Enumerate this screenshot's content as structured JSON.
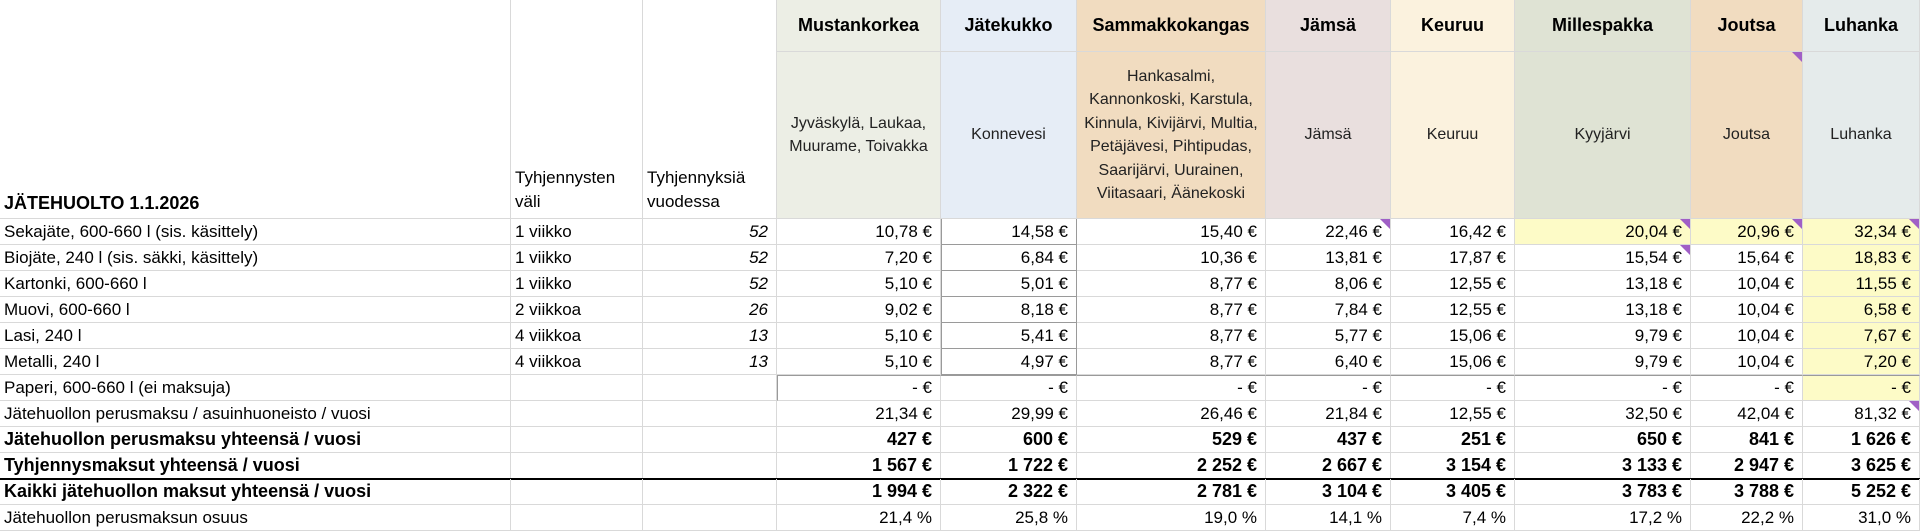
{
  "title": "JÄTEHUOLTO 1.1.2026",
  "col_interval_header": "Tyhjennysten väli",
  "col_count_header": "Tyhjennyksiä vuodessa",
  "providers": [
    {
      "name": "Mustankorkea",
      "municipalities": "Jyväskylä, Laukaa, Muurame, Toivakka",
      "color": "#eceee5"
    },
    {
      "name": "Jätekukko",
      "municipalities": "Konnevesi",
      "color": "#e6edf6"
    },
    {
      "name": "Sammakkokangas",
      "municipalities": "Hankasalmi, Kannonkoski, Karstula, Kinnula, Kivijärvi, Multia, Petäjävesi, Pihtipudas, Saarijärvi, Uurainen, Viitasaari, Äänekoski",
      "color": "#f1dcc0"
    },
    {
      "name": "Jämsä",
      "municipalities": "Jämsä",
      "color": "#e9dfde"
    },
    {
      "name": "Keuruu",
      "municipalities": "Keuruu",
      "color": "#fbf2de"
    },
    {
      "name": "Millespakka",
      "municipalities": "Kyyjärvi",
      "color": "#dfe3d4"
    },
    {
      "name": "Joutsa",
      "municipalities": "Joutsa",
      "color": "#f1dcc0"
    },
    {
      "name": "Luhanka",
      "municipalities": "Luhanka",
      "color": "#e5ebeb"
    }
  ],
  "rows": [
    {
      "label": "Sekajäte, 600-660 l (sis. käsittely)",
      "interval": "1 viikko",
      "count": "52",
      "values": [
        "10,78 €",
        "14,58 €",
        "15,40 €",
        "22,46 €",
        "16,42 €",
        "20,04 €",
        "20,96 €",
        "32,34 €"
      ]
    },
    {
      "label": "Biojäte, 240 l (sis. säkki, käsittely)",
      "interval": "1 viikko",
      "count": "52",
      "values": [
        "7,20 €",
        "6,84 €",
        "10,36 €",
        "13,81 €",
        "17,87 €",
        "15,54 €",
        "15,64 €",
        "18,83 €"
      ]
    },
    {
      "label": "Kartonki, 600-660 l",
      "interval": "1 viikko",
      "count": "52",
      "values": [
        "5,10 €",
        "5,01 €",
        "8,77 €",
        "8,06 €",
        "12,55 €",
        "13,18 €",
        "10,04 €",
        "11,55 €"
      ]
    },
    {
      "label": "Muovi, 600-660 l",
      "interval": "2 viikkoa",
      "count": "26",
      "values": [
        "9,02 €",
        "8,18 €",
        "8,77 €",
        "7,84 €",
        "12,55 €",
        "13,18 €",
        "10,04 €",
        "6,58 €"
      ]
    },
    {
      "label": "Lasi, 240 l",
      "interval": "4 viikkoa",
      "count": "13",
      "values": [
        "5,10 €",
        "5,41 €",
        "8,77 €",
        "5,77 €",
        "15,06 €",
        "9,79 €",
        "10,04 €",
        "7,67 €"
      ]
    },
    {
      "label": "Metalli, 240 l",
      "interval": "4 viikkoa",
      "count": "13",
      "values": [
        "5,10 €",
        "4,97 €",
        "8,77 €",
        "6,40 €",
        "15,06 €",
        "9,79 €",
        "10,04 €",
        "7,20 €"
      ]
    },
    {
      "label": "Paperi, 600-660 l (ei maksuja)",
      "interval": "",
      "count": "",
      "values": [
        "-    €",
        "-    €",
        "-    €",
        "-    €",
        "-    €",
        "-    €",
        "-    €",
        "-    €"
      ]
    },
    {
      "label": "Jätehuollon perusmaksu / asuinhuoneisto / vuosi",
      "interval": "",
      "count": "",
      "values": [
        "21,34 €",
        "29,99 €",
        "26,46 €",
        "21,84 €",
        "12,55 €",
        "32,50 €",
        "42,04 €",
        "81,32 €"
      ]
    }
  ],
  "summary_rows": [
    {
      "label": "Jätehuollon perusmaksu yhteensä / vuosi",
      "values": [
        "427 €",
        "600 €",
        "529 €",
        "437 €",
        "251 €",
        "650 €",
        "841 €",
        "1 626 €"
      ]
    },
    {
      "label": "Tyhjennysmaksut yhteensä / vuosi",
      "values": [
        "1 567 €",
        "1 722 €",
        "2 252 €",
        "2 667 €",
        "3 154 €",
        "3 133 €",
        "2 947 €",
        "3 625 €"
      ]
    },
    {
      "label": "Kaikki jätehuollon maksut yhteensä / vuosi",
      "values": [
        "1 994 €",
        "2 322 €",
        "2 781 €",
        "3 104 €",
        "3 405 €",
        "3 783 €",
        "3 788 €",
        "5 252 €"
      ]
    }
  ],
  "share_row": {
    "label": "Jätehuollon perusmaksun osuus",
    "values": [
      "21,4 %",
      "25,8 %",
      "19,0 %",
      "14,1 %",
      "7,4 %",
      "17,2 %",
      "22,2 %",
      "31,0 %"
    ]
  },
  "colors": {
    "highlight": "#fdfbc7",
    "comment_marker": "#a05fc6",
    "gridline": "#d9d9d9"
  }
}
